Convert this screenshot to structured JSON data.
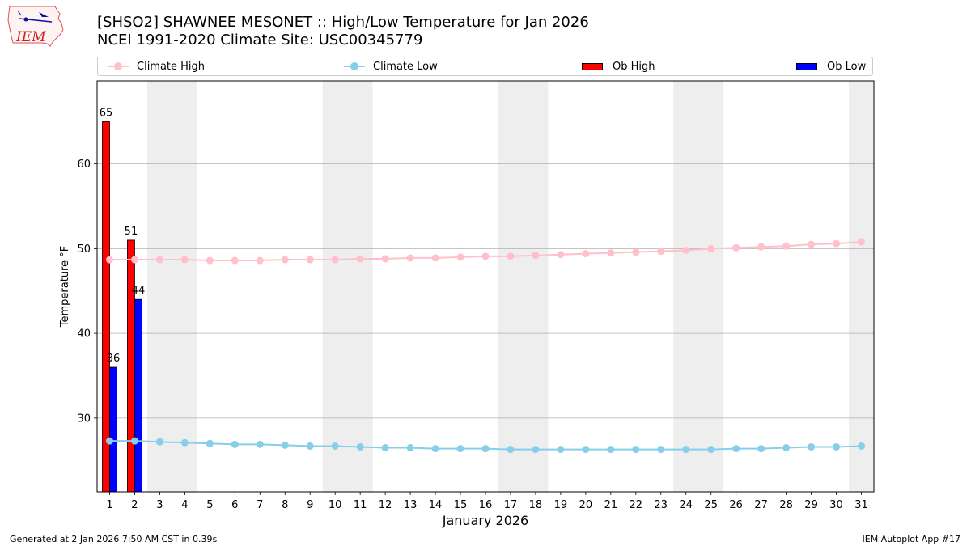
{
  "header": {
    "title_line1": "[SHSO2] SHAWNEE MESONET :: High/Low Temperature for Jan 2026",
    "title_line2": "NCEI 1991-2020 Climate Site: USC00345779",
    "logo_text": "IEM"
  },
  "legend": {
    "climate_high": "Climate High",
    "climate_low": "Climate Low",
    "ob_high": "Ob High",
    "ob_low": "Ob Low"
  },
  "footer": {
    "generated": "Generated at 2 Jan 2026 7:50 AM CST in 0.39s",
    "app": "IEM Autoplot App #17"
  },
  "colors": {
    "climate_high": "#ffc0cb",
    "climate_low": "#87ceeb",
    "ob_high": "#ff0000",
    "ob_low": "#0000ff",
    "weekend_shade": "#eeeeee",
    "grid": "#b0b0b0"
  },
  "chart_data": {
    "type": "bar",
    "xlabel": "January 2026",
    "ylabel": "Temperature °F",
    "xlim": [
      0.5,
      31.5
    ],
    "ylim": [
      21.3,
      69.8
    ],
    "x": [
      1,
      2,
      3,
      4,
      5,
      6,
      7,
      8,
      9,
      10,
      11,
      12,
      13,
      14,
      15,
      16,
      17,
      18,
      19,
      20,
      21,
      22,
      23,
      24,
      25,
      26,
      27,
      28,
      29,
      30,
      31
    ],
    "yticks": [
      30,
      40,
      50,
      60
    ],
    "grid": "horizontal",
    "legend_position": "top",
    "shaded_weekend_ranges": [
      [
        2.5,
        4.5
      ],
      [
        9.5,
        11.5
      ],
      [
        16.5,
        18.5
      ],
      [
        23.5,
        25.5
      ],
      [
        30.5,
        31.5
      ]
    ],
    "series": [
      {
        "name": "Climate High",
        "kind": "line",
        "x": [
          1,
          2,
          3,
          4,
          5,
          6,
          7,
          8,
          9,
          10,
          11,
          12,
          13,
          14,
          15,
          16,
          17,
          18,
          19,
          20,
          21,
          22,
          23,
          24,
          25,
          26,
          27,
          28,
          29,
          30,
          31
        ],
        "values": [
          48.7,
          48.7,
          48.7,
          48.7,
          48.6,
          48.6,
          48.6,
          48.7,
          48.7,
          48.7,
          48.8,
          48.8,
          48.9,
          48.9,
          49.0,
          49.1,
          49.1,
          49.2,
          49.3,
          49.4,
          49.5,
          49.6,
          49.7,
          49.8,
          50.0,
          50.1,
          50.2,
          50.3,
          50.5,
          50.6,
          50.8
        ]
      },
      {
        "name": "Climate Low",
        "kind": "line",
        "x": [
          1,
          2,
          3,
          4,
          5,
          6,
          7,
          8,
          9,
          10,
          11,
          12,
          13,
          14,
          15,
          16,
          17,
          18,
          19,
          20,
          21,
          22,
          23,
          24,
          25,
          26,
          27,
          28,
          29,
          30,
          31
        ],
        "values": [
          27.3,
          27.3,
          27.2,
          27.1,
          27.0,
          26.9,
          26.9,
          26.8,
          26.7,
          26.7,
          26.6,
          26.5,
          26.5,
          26.4,
          26.4,
          26.4,
          26.3,
          26.3,
          26.3,
          26.3,
          26.3,
          26.3,
          26.3,
          26.3,
          26.3,
          26.4,
          26.4,
          26.5,
          26.6,
          26.6,
          26.7
        ]
      },
      {
        "name": "Ob High",
        "kind": "bar",
        "x": [
          1,
          2
        ],
        "values": [
          65,
          51
        ]
      },
      {
        "name": "Ob Low",
        "kind": "bar",
        "x": [
          1,
          2
        ],
        "values": [
          36,
          44
        ]
      }
    ]
  }
}
